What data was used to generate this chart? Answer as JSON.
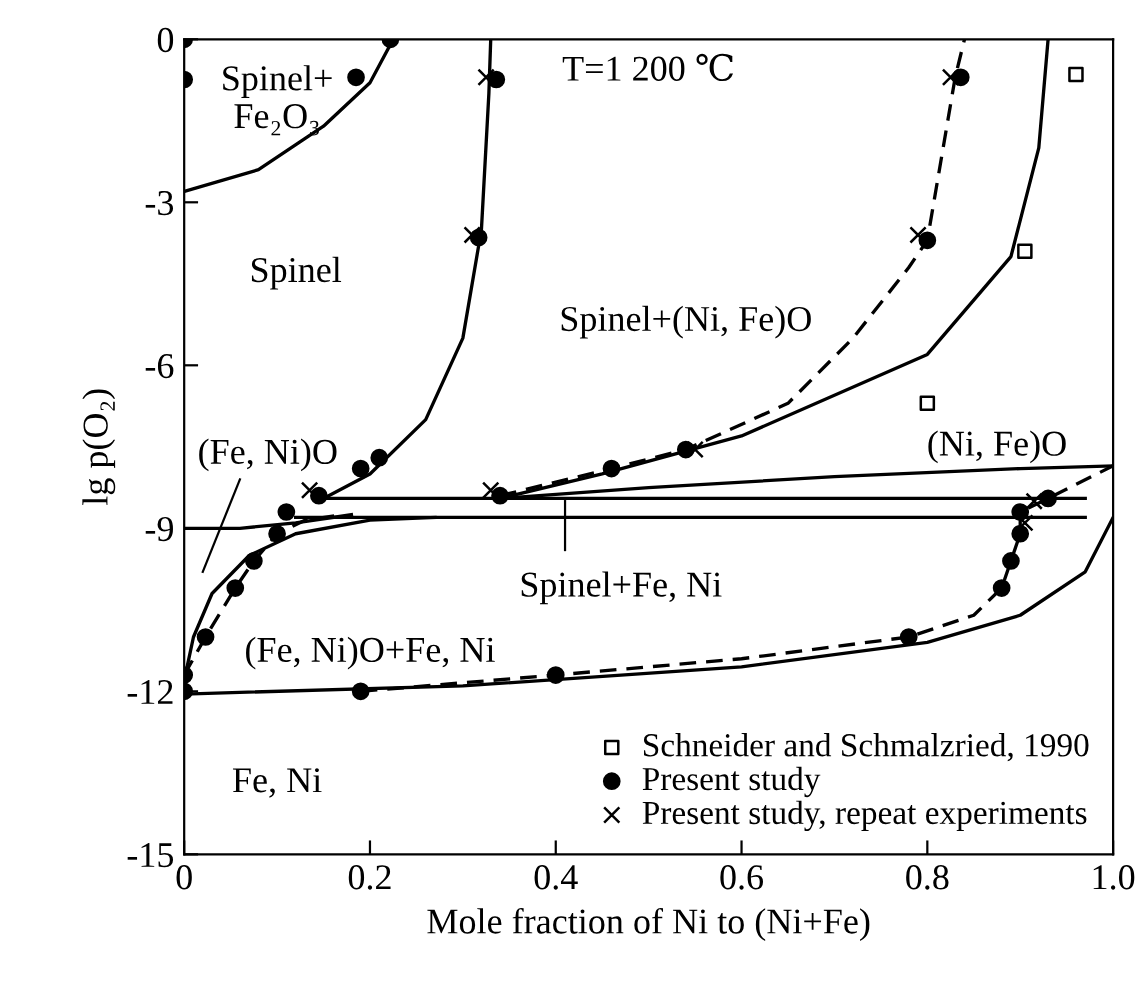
{
  "chart_data": {
    "type": "line",
    "xlabel": "Mole fraction of Ni to (Ni+Fe)",
    "ylabel": "lg p(O₂)",
    "xlim": [
      0,
      1
    ],
    "ylim": [
      -15,
      0
    ],
    "xticks": [
      0,
      0.2,
      0.4,
      0.6,
      0.8,
      {
        "value": 1,
        "label": "1.0"
      }
    ],
    "yticks": [
      -15,
      -12,
      -9,
      -6,
      -3,
      0
    ],
    "grid": false,
    "legend": "bottom right",
    "series": [
      {
        "type": "scatter",
        "name": "Schneider and Schmalzried, 1990",
        "color": "#000000",
        "marker": "square",
        "x": [
          0.96,
          0.905,
          0.8
        ],
        "values": [
          -0.65,
          -3.9,
          -6.7
        ]
      },
      {
        "color": "#000000",
        "line_style": "solid",
        "x": [
          0,
          0.08,
          0.15,
          0.2,
          0.225
        ],
        "values": [
          -2.8,
          -2.4,
          -1.6,
          -0.8,
          0
        ]
      },
      {
        "color": "#000000",
        "line_style": "solid",
        "x": [
          0.33,
          0.328,
          0.32,
          0.3,
          0.26,
          0.2,
          0.15
        ],
        "values": [
          0,
          -1,
          -3.5,
          -5.5,
          -7,
          -8,
          -8.45
        ]
      },
      {
        "color": "#000000",
        "line_style": "solid",
        "x": [
          0.15,
          0.97
        ],
        "values": [
          -8.45,
          -8.45
        ]
      },
      {
        "color": "#000000",
        "line_style": "solid",
        "x": [
          0.12,
          0.97
        ],
        "values": [
          -8.8,
          -8.8
        ]
      },
      {
        "color": "#000000",
        "line_style": "solid",
        "x": [
          0.34,
          0.5,
          0.7,
          0.9,
          1
        ],
        "values": [
          -8.45,
          -8.25,
          -8.05,
          -7.9,
          -7.85
        ]
      },
      {
        "color": "#000000",
        "line_style": "solid",
        "x": [
          0.93,
          0.92,
          0.89,
          0.8,
          0.6,
          0.45,
          0.34
        ],
        "values": [
          0,
          -2,
          -4,
          -5.8,
          -7.3,
          -8,
          -8.45
        ]
      },
      {
        "color": "#000000",
        "line_style": "solid",
        "x": [
          0,
          0.06,
          0.12,
          0.18
        ],
        "values": [
          -9,
          -9,
          -8.9,
          -8.75
        ]
      },
      {
        "color": "#000000",
        "line_style": "solid",
        "x": [
          0,
          0.01,
          0.03,
          0.07,
          0.12,
          0.2,
          0.27
        ],
        "values": [
          -11.8,
          -11,
          -10.2,
          -9.5,
          -9.1,
          -8.85,
          -8.8
        ]
      },
      {
        "color": "#000000",
        "line_style": "solid",
        "x": [
          0,
          0.3,
          0.6,
          0.8,
          0.9,
          0.97,
          1
        ],
        "values": [
          -12.05,
          -11.9,
          -11.55,
          -11.1,
          -10.6,
          -9.8,
          -8.8
        ]
      },
      {
        "color": "#000000",
        "line_style": "dashed",
        "x": [
          0.34,
          0.46,
          0.54,
          0.65,
          0.72,
          0.78,
          0.8,
          0.83,
          0.84
        ],
        "values": [
          -8.4,
          -7.9,
          -7.55,
          -6.7,
          -5.5,
          -4.2,
          -3.7,
          -0.7,
          0
        ]
      },
      {
        "color": "#000000",
        "line_style": "dashed",
        "x": [
          0,
          0.023,
          0.055,
          0.075,
          0.1,
          0.13,
          0.17
        ],
        "values": [
          -11.7,
          -11,
          -10.1,
          -9.6,
          -9.1,
          -8.85,
          -8.75
        ]
      },
      {
        "color": "#000000",
        "line_style": "dashed",
        "x": [
          0.19,
          0.4,
          0.6,
          0.78,
          0.85,
          0.88,
          0.89,
          0.9,
          0.9,
          0.93,
          1
        ],
        "values": [
          -12,
          -11.7,
          -11.4,
          -11,
          -10.6,
          -10.1,
          -9.6,
          -9.1,
          -8.7,
          -8.45,
          -7.85
        ]
      },
      {
        "type": "scatter",
        "name": "Present study",
        "color": "#000000",
        "marker": "circle",
        "x": [
          0,
          0,
          0.185,
          0.222,
          0.336,
          0.317,
          0.21,
          0.19,
          0.145,
          0.11,
          0.34,
          0.46,
          0.54,
          0.836,
          0.8,
          0.1,
          0.075,
          0.055,
          0.023,
          0,
          0,
          0.19,
          0.4,
          0.78,
          0.88,
          0.89,
          0.9,
          0.9,
          0.93
        ],
        "values": [
          0,
          -0.74,
          -0.7,
          0,
          -0.74,
          -3.65,
          -7.7,
          -7.9,
          -8.4,
          -8.7,
          -8.4,
          -7.9,
          -7.55,
          -0.7,
          -3.7,
          -9.1,
          -9.6,
          -10.1,
          -11,
          -11.7,
          -12,
          -12,
          -11.7,
          -11,
          -10.1,
          -9.6,
          -9.1,
          -8.7,
          -8.45
        ]
      },
      {
        "type": "scatter",
        "name": "Present study, repeat experiments",
        "color": "#000000",
        "marker": "cross",
        "x": [
          0.325,
          0.31,
          0.135,
          0.33,
          0.825,
          0.79,
          0.55,
          0.915,
          0.905
        ],
        "values": [
          -0.7,
          -3.6,
          -8.3,
          -8.3,
          -0.7,
          -3.6,
          -7.55,
          -8.5,
          -8.9
        ]
      }
    ],
    "annotations": [
      "Spinel+\nFe₂O₃",
      "T=1 200 ℃",
      "Spinel",
      "Spinel+(Ni, Fe)O",
      "(Fe, Ni)O",
      "(Ni, Fe)O",
      "Spinel+Fe, Ni",
      "(Fe, Ni)O+Fe, Ni",
      "Fe, Ni"
    ]
  }
}
